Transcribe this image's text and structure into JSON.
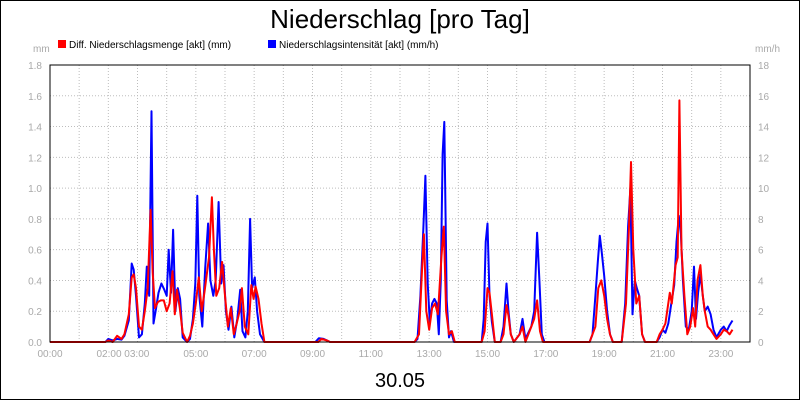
{
  "chart_data": {
    "type": "line",
    "title": "Niederschlag [pro Tag]",
    "xlabel": "30.05",
    "y_left_unit": "mm",
    "y_right_unit": "mm/h",
    "ylim_left": [
      0,
      1.8
    ],
    "ylim_right": [
      0,
      18
    ],
    "y_left_ticks": [
      "0.0",
      "0.2",
      "0.4",
      "0.6",
      "0.8",
      "1.0",
      "1.2",
      "1.4",
      "1.6",
      "1.8"
    ],
    "y_right_ticks": [
      "0",
      "2",
      "4",
      "6",
      "8",
      "10",
      "12",
      "14",
      "16",
      "18"
    ],
    "xlim_hours": [
      0,
      24
    ],
    "x_tick_labels": [
      {
        "hour": 0,
        "label": "00:00"
      },
      {
        "hour": 2.5,
        "label": "02:00 03:00"
      },
      {
        "hour": 5,
        "label": "05:00"
      },
      {
        "hour": 7,
        "label": "07:00"
      },
      {
        "hour": 9,
        "label": "09:00"
      },
      {
        "hour": 11,
        "label": "11:00"
      },
      {
        "hour": 13,
        "label": "13:00"
      },
      {
        "hour": 15,
        "label": "15:00"
      },
      {
        "hour": 17,
        "label": "17:00"
      },
      {
        "hour": 19,
        "label": "19:00"
      },
      {
        "hour": 21,
        "label": "21:00"
      },
      {
        "hour": 23,
        "label": "23:00"
      }
    ],
    "grid": true,
    "legend_position": "top-left",
    "series": [
      {
        "name": "Diff. Niederschlagsmenge [akt] (mm)",
        "color": "#ff0000",
        "axis": "left",
        "points": [
          [
            0,
            0
          ],
          [
            1.9,
            0
          ],
          [
            2.0,
            0.01
          ],
          [
            2.15,
            0
          ],
          [
            2.3,
            0.04
          ],
          [
            2.45,
            0.02
          ],
          [
            2.55,
            0.05
          ],
          [
            2.7,
            0.18
          ],
          [
            2.8,
            0.42
          ],
          [
            2.87,
            0.44
          ],
          [
            2.95,
            0.35
          ],
          [
            3.05,
            0.1
          ],
          [
            3.15,
            0.08
          ],
          [
            3.25,
            0.2
          ],
          [
            3.35,
            0.35
          ],
          [
            3.45,
            0.86
          ],
          [
            3.52,
            0.45
          ],
          [
            3.6,
            0.22
          ],
          [
            3.7,
            0.26
          ],
          [
            3.8,
            0.27
          ],
          [
            3.9,
            0.27
          ],
          [
            4.0,
            0.2
          ],
          [
            4.1,
            0.25
          ],
          [
            4.2,
            0.46
          ],
          [
            4.28,
            0.18
          ],
          [
            4.35,
            0.34
          ],
          [
            4.45,
            0.22
          ],
          [
            4.55,
            0.06
          ],
          [
            4.7,
            0.0
          ],
          [
            4.8,
            0.04
          ],
          [
            4.9,
            0.12
          ],
          [
            5.0,
            0.25
          ],
          [
            5.1,
            0.42
          ],
          [
            5.2,
            0.2
          ],
          [
            5.3,
            0.33
          ],
          [
            5.45,
            0.55
          ],
          [
            5.55,
            0.94
          ],
          [
            5.62,
            0.6
          ],
          [
            5.7,
            0.3
          ],
          [
            5.8,
            0.35
          ],
          [
            5.9,
            0.52
          ],
          [
            6.0,
            0.3
          ],
          [
            6.1,
            0.1
          ],
          [
            6.2,
            0.22
          ],
          [
            6.3,
            0.05
          ],
          [
            6.4,
            0.12
          ],
          [
            6.5,
            0.2
          ],
          [
            6.58,
            0.35
          ],
          [
            6.68,
            0.1
          ],
          [
            6.8,
            0.05
          ],
          [
            6.9,
            0.37
          ],
          [
            6.98,
            0.28
          ],
          [
            7.05,
            0.36
          ],
          [
            7.15,
            0.28
          ],
          [
            7.25,
            0.12
          ],
          [
            7.35,
            0.0
          ],
          [
            9.2,
            0
          ],
          [
            9.3,
            0.02
          ],
          [
            9.5,
            0.01
          ],
          [
            9.6,
            0
          ],
          [
            12.5,
            0
          ],
          [
            12.65,
            0.05
          ],
          [
            12.75,
            0.45
          ],
          [
            12.82,
            0.7
          ],
          [
            12.9,
            0.2
          ],
          [
            13.0,
            0.08
          ],
          [
            13.1,
            0.22
          ],
          [
            13.2,
            0.25
          ],
          [
            13.3,
            0.18
          ],
          [
            13.42,
            0.55
          ],
          [
            13.5,
            0.75
          ],
          [
            13.58,
            0.2
          ],
          [
            13.68,
            0.05
          ],
          [
            13.78,
            0.07
          ],
          [
            13.88,
            0.0
          ],
          [
            14.0,
            0
          ],
          [
            14.8,
            0
          ],
          [
            14.9,
            0.07
          ],
          [
            15.0,
            0.35
          ],
          [
            15.07,
            0.32
          ],
          [
            15.15,
            0.18
          ],
          [
            15.25,
            0.0
          ],
          [
            15.45,
            0.0
          ],
          [
            15.55,
            0.05
          ],
          [
            15.65,
            0.24
          ],
          [
            15.72,
            0.17
          ],
          [
            15.8,
            0.05
          ],
          [
            15.9,
            0.0
          ],
          [
            16.1,
            0.05
          ],
          [
            16.2,
            0.1
          ],
          [
            16.3,
            0.0
          ],
          [
            16.5,
            0.1
          ],
          [
            16.6,
            0.15
          ],
          [
            16.7,
            0.27
          ],
          [
            16.8,
            0.07
          ],
          [
            16.9,
            0.0
          ],
          [
            18.5,
            0
          ],
          [
            18.6,
            0.05
          ],
          [
            18.7,
            0.1
          ],
          [
            18.8,
            0.35
          ],
          [
            18.9,
            0.4
          ],
          [
            19.0,
            0.3
          ],
          [
            19.1,
            0.15
          ],
          [
            19.2,
            0.05
          ],
          [
            19.3,
            0.0
          ],
          [
            19.6,
            0.0
          ],
          [
            19.75,
            0.25
          ],
          [
            19.85,
            0.75
          ],
          [
            19.92,
            1.17
          ],
          [
            20.0,
            0.6
          ],
          [
            20.1,
            0.25
          ],
          [
            20.2,
            0.3
          ],
          [
            20.3,
            0.05
          ],
          [
            20.4,
            0.0
          ],
          [
            20.8,
            0.0
          ],
          [
            20.9,
            0.05
          ],
          [
            21.0,
            0.08
          ],
          [
            21.1,
            0.12
          ],
          [
            21.25,
            0.32
          ],
          [
            21.32,
            0.25
          ],
          [
            21.45,
            0.5
          ],
          [
            21.52,
            0.55
          ],
          [
            21.58,
            1.57
          ],
          [
            21.65,
            0.6
          ],
          [
            21.75,
            0.3
          ],
          [
            21.85,
            0.05
          ],
          [
            21.95,
            0.1
          ],
          [
            22.05,
            0.22
          ],
          [
            22.12,
            0.1
          ],
          [
            22.2,
            0.4
          ],
          [
            22.3,
            0.5
          ],
          [
            22.38,
            0.3
          ],
          [
            22.45,
            0.2
          ],
          [
            22.55,
            0.1
          ],
          [
            22.65,
            0.08
          ],
          [
            22.75,
            0.05
          ],
          [
            22.85,
            0.02
          ],
          [
            23.0,
            0.05
          ],
          [
            23.1,
            0.08
          ],
          [
            23.2,
            0.07
          ],
          [
            23.3,
            0.05
          ],
          [
            23.4,
            0.08
          ]
        ]
      },
      {
        "name": "Niederschlagsintensität [akt] (mm/h)",
        "color": "#0000ff",
        "axis": "right",
        "points": [
          [
            0,
            0
          ],
          [
            1.9,
            0
          ],
          [
            2.0,
            0.2
          ],
          [
            2.15,
            0.1
          ],
          [
            2.3,
            0.2
          ],
          [
            2.45,
            0.15
          ],
          [
            2.55,
            0.4
          ],
          [
            2.7,
            1.4
          ],
          [
            2.8,
            5.1
          ],
          [
            2.87,
            4.7
          ],
          [
            2.95,
            3.0
          ],
          [
            3.05,
            0.3
          ],
          [
            3.15,
            0.5
          ],
          [
            3.25,
            2.5
          ],
          [
            3.32,
            4.9
          ],
          [
            3.4,
            3.0
          ],
          [
            3.48,
            15.0
          ],
          [
            3.55,
            1.2
          ],
          [
            3.62,
            2.0
          ],
          [
            3.72,
            3.2
          ],
          [
            3.82,
            3.8
          ],
          [
            3.92,
            3.4
          ],
          [
            4.0,
            3.0
          ],
          [
            4.07,
            6.0
          ],
          [
            4.15,
            3.2
          ],
          [
            4.22,
            7.3
          ],
          [
            4.3,
            2.0
          ],
          [
            4.38,
            3.5
          ],
          [
            4.46,
            2.8
          ],
          [
            4.55,
            0.3
          ],
          [
            4.7,
            0.0
          ],
          [
            4.8,
            0.2
          ],
          [
            4.9,
            1.5
          ],
          [
            4.98,
            3.8
          ],
          [
            5.05,
            9.5
          ],
          [
            5.12,
            3.0
          ],
          [
            5.22,
            1.0
          ],
          [
            5.32,
            4.8
          ],
          [
            5.42,
            7.7
          ],
          [
            5.5,
            4.0
          ],
          [
            5.6,
            3.0
          ],
          [
            5.68,
            4.0
          ],
          [
            5.78,
            9.1
          ],
          [
            5.87,
            3.8
          ],
          [
            5.95,
            5.0
          ],
          [
            6.03,
            2.0
          ],
          [
            6.12,
            0.8
          ],
          [
            6.22,
            2.3
          ],
          [
            6.32,
            0.3
          ],
          [
            6.42,
            1.5
          ],
          [
            6.52,
            3.4
          ],
          [
            6.6,
            0.7
          ],
          [
            6.7,
            0.3
          ],
          [
            6.78,
            2.0
          ],
          [
            6.86,
            8.0
          ],
          [
            6.93,
            3.5
          ],
          [
            7.02,
            4.2
          ],
          [
            7.1,
            2.0
          ],
          [
            7.2,
            0.5
          ],
          [
            7.35,
            0.0
          ],
          [
            9.1,
            0
          ],
          [
            9.22,
            0.25
          ],
          [
            9.38,
            0.2
          ],
          [
            9.5,
            0.1
          ],
          [
            9.6,
            0
          ],
          [
            12.5,
            0
          ],
          [
            12.6,
            0.2
          ],
          [
            12.7,
            3.0
          ],
          [
            12.8,
            7.3
          ],
          [
            12.87,
            10.8
          ],
          [
            12.95,
            3.8
          ],
          [
            13.02,
            1.3
          ],
          [
            13.1,
            2.5
          ],
          [
            13.18,
            2.8
          ],
          [
            13.26,
            2.5
          ],
          [
            13.33,
            0.5
          ],
          [
            13.4,
            4.0
          ],
          [
            13.46,
            12.2
          ],
          [
            13.52,
            14.3
          ],
          [
            13.6,
            2.7
          ],
          [
            13.68,
            0.3
          ],
          [
            13.75,
            0.7
          ],
          [
            13.85,
            0.0
          ],
          [
            14.0,
            0
          ],
          [
            14.8,
            0
          ],
          [
            14.87,
            1.5
          ],
          [
            14.94,
            6.5
          ],
          [
            15.0,
            7.7
          ],
          [
            15.07,
            3.0
          ],
          [
            15.15,
            1.3
          ],
          [
            15.25,
            0.0
          ],
          [
            15.45,
            0.0
          ],
          [
            15.55,
            1.0
          ],
          [
            15.65,
            3.8
          ],
          [
            15.72,
            2.0
          ],
          [
            15.8,
            0.5
          ],
          [
            15.9,
            0.0
          ],
          [
            16.1,
            0.5
          ],
          [
            16.2,
            1.5
          ],
          [
            16.3,
            0.2
          ],
          [
            16.5,
            1.0
          ],
          [
            16.6,
            2.0
          ],
          [
            16.7,
            7.1
          ],
          [
            16.78,
            4.0
          ],
          [
            16.86,
            0.5
          ],
          [
            16.95,
            0.0
          ],
          [
            18.5,
            0
          ],
          [
            18.6,
            0.5
          ],
          [
            18.7,
            3.0
          ],
          [
            18.78,
            5.2
          ],
          [
            18.85,
            6.9
          ],
          [
            18.92,
            5.8
          ],
          [
            19.0,
            4.3
          ],
          [
            19.1,
            2.0
          ],
          [
            19.2,
            0.5
          ],
          [
            19.3,
            0.0
          ],
          [
            19.6,
            0.0
          ],
          [
            19.72,
            2.5
          ],
          [
            19.82,
            7.5
          ],
          [
            19.9,
            10.0
          ],
          [
            19.97,
            1.8
          ],
          [
            20.05,
            4.0
          ],
          [
            20.12,
            3.5
          ],
          [
            20.2,
            3.0
          ],
          [
            20.3,
            0.5
          ],
          [
            20.4,
            0.0
          ],
          [
            20.8,
            0.0
          ],
          [
            20.9,
            0.3
          ],
          [
            21.0,
            0.8
          ],
          [
            21.1,
            0.6
          ],
          [
            21.2,
            1.2
          ],
          [
            21.3,
            2.5
          ],
          [
            21.4,
            3.7
          ],
          [
            21.48,
            6.5
          ],
          [
            21.56,
            8.2
          ],
          [
            21.63,
            7.0
          ],
          [
            21.7,
            4.0
          ],
          [
            21.8,
            1.0
          ],
          [
            21.9,
            0.8
          ],
          [
            22.0,
            2.0
          ],
          [
            22.08,
            4.9
          ],
          [
            22.15,
            1.5
          ],
          [
            22.22,
            3.2
          ],
          [
            22.3,
            4.4
          ],
          [
            22.38,
            3.0
          ],
          [
            22.45,
            2.0
          ],
          [
            22.55,
            2.3
          ],
          [
            22.65,
            1.8
          ],
          [
            22.75,
            0.8
          ],
          [
            22.85,
            0.3
          ],
          [
            23.0,
            0.8
          ],
          [
            23.1,
            1.0
          ],
          [
            23.2,
            0.7
          ],
          [
            23.3,
            1.1
          ],
          [
            23.4,
            1.4
          ]
        ]
      }
    ]
  }
}
